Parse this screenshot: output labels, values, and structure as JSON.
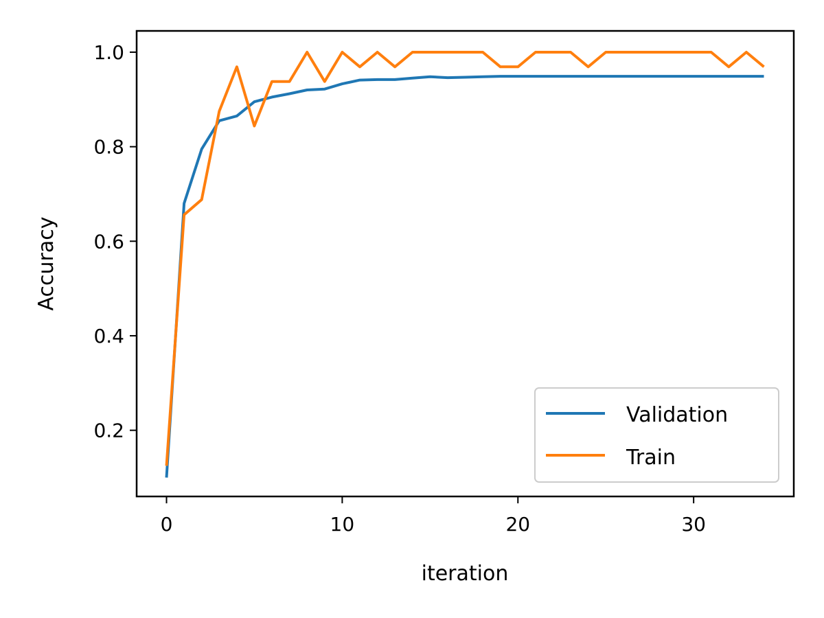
{
  "chart_data": {
    "type": "line",
    "title": "",
    "xlabel": "iteration",
    "ylabel": "Accuracy",
    "xlim": [
      -1.7,
      35.7
    ],
    "ylim": [
      0.06,
      1.045
    ],
    "xticks": [
      0,
      10,
      20,
      30
    ],
    "yticks": [
      0.2,
      0.4,
      0.6,
      0.8,
      1.0
    ],
    "xtick_labels": [
      "0",
      "10",
      "20",
      "30"
    ],
    "ytick_labels": [
      "0.2",
      "0.4",
      "0.6",
      "0.8",
      "1.0"
    ],
    "grid": false,
    "legend_position": "lower-right",
    "x": [
      0,
      1,
      2,
      3,
      4,
      5,
      6,
      7,
      8,
      9,
      10,
      11,
      12,
      13,
      14,
      15,
      16,
      17,
      18,
      19,
      20,
      21,
      22,
      23,
      24,
      25,
      26,
      27,
      28,
      29,
      30,
      31,
      32,
      33,
      34
    ],
    "series": [
      {
        "name": "Validation",
        "color": "#1f77b4",
        "values": [
          0.1,
          0.68,
          0.795,
          0.855,
          0.865,
          0.895,
          0.905,
          0.912,
          0.92,
          0.922,
          0.933,
          0.941,
          0.942,
          0.942,
          0.945,
          0.948,
          0.946,
          0.947,
          0.948,
          0.949,
          0.949,
          0.949,
          0.949,
          0.949,
          0.949,
          0.949,
          0.949,
          0.949,
          0.949,
          0.949,
          0.949,
          0.949,
          0.949,
          0.949,
          0.949
        ]
      },
      {
        "name": "Train",
        "color": "#ff7f0e",
        "values": [
          0.125,
          0.656,
          0.688,
          0.875,
          0.969,
          0.844,
          0.938,
          0.938,
          1.0,
          0.938,
          1.0,
          0.969,
          1.0,
          0.969,
          1.0,
          1.0,
          1.0,
          1.0,
          1.0,
          0.969,
          0.969,
          1.0,
          1.0,
          1.0,
          0.969,
          1.0,
          1.0,
          1.0,
          1.0,
          1.0,
          1.0,
          1.0,
          0.969,
          1.0,
          0.969
        ]
      }
    ]
  }
}
